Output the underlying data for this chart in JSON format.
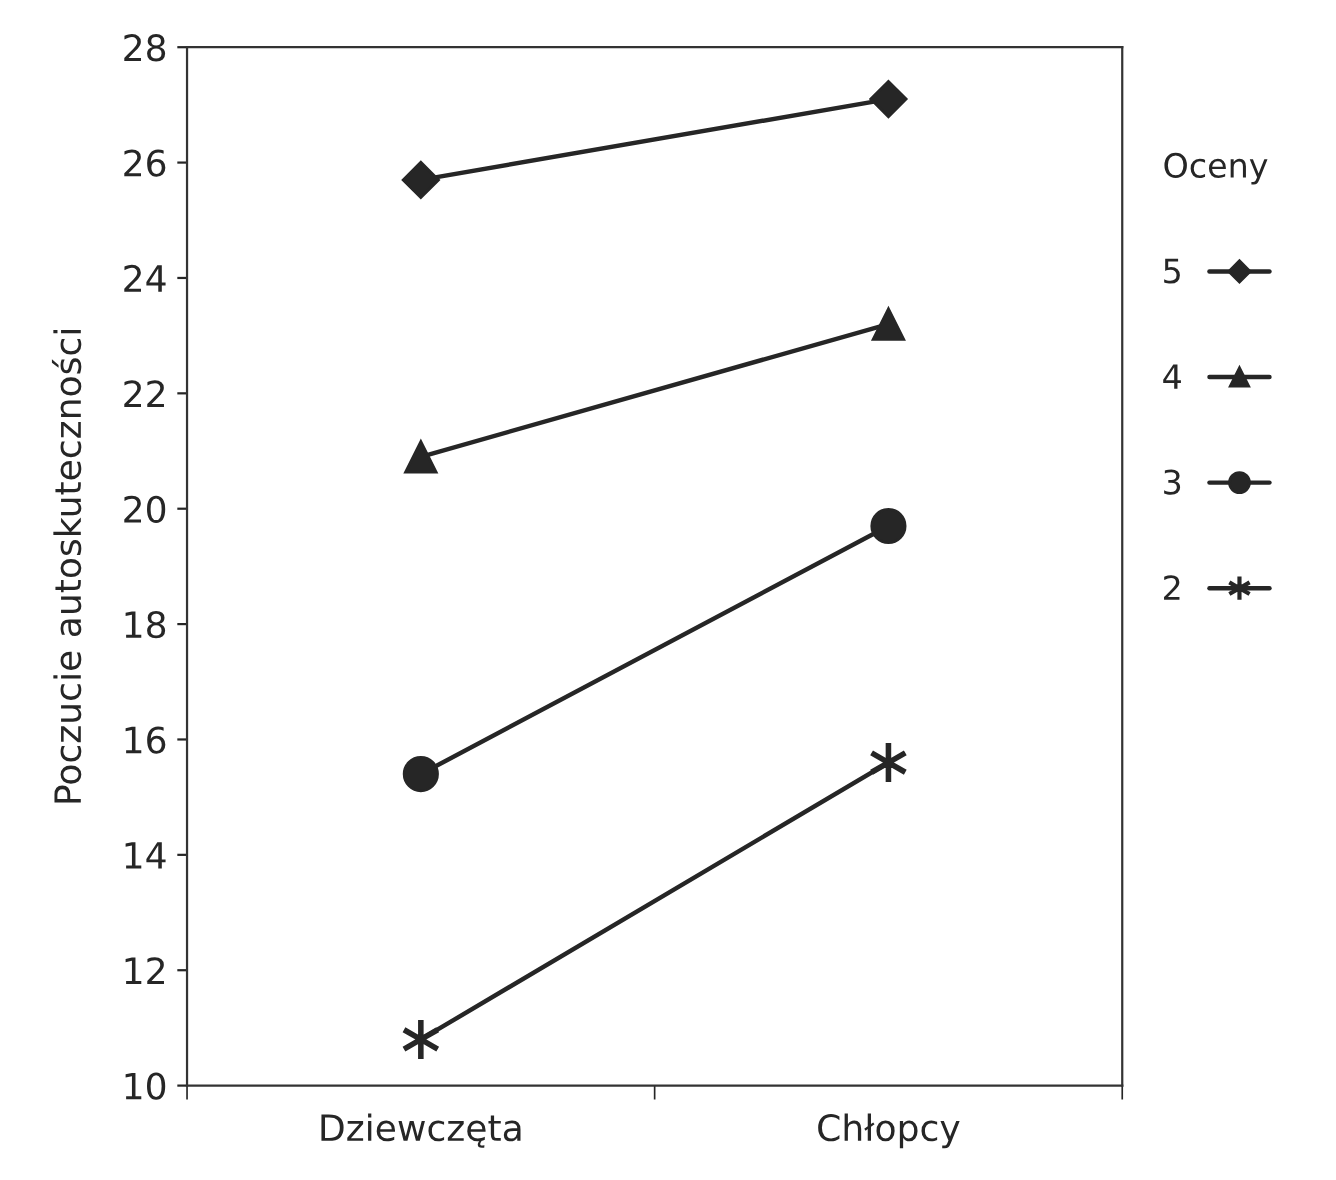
{
  "chart_data": {
    "type": "line",
    "ylabel": "Poczucie autoskuteczności",
    "legend_title": "Oceny",
    "legend": "right",
    "categories": [
      "Dziewczęta",
      "Chłopcy"
    ],
    "ylim": [
      10,
      28
    ],
    "yticks": [
      10,
      12,
      14,
      16,
      18,
      20,
      22,
      24,
      26,
      28
    ],
    "grid": false,
    "series": [
      {
        "name": "5",
        "color": "#262626",
        "marker": "diamond",
        "values": [
          25.7,
          27.1
        ]
      },
      {
        "name": "4",
        "color": "#262626",
        "marker": "triangle",
        "values": [
          20.9,
          23.2
        ]
      },
      {
        "name": "3",
        "color": "#262626",
        "marker": "circle",
        "values": [
          15.4,
          19.7
        ]
      },
      {
        "name": "2",
        "color": "#262626",
        "marker": "cross",
        "values": [
          10.8,
          15.6
        ]
      }
    ]
  }
}
